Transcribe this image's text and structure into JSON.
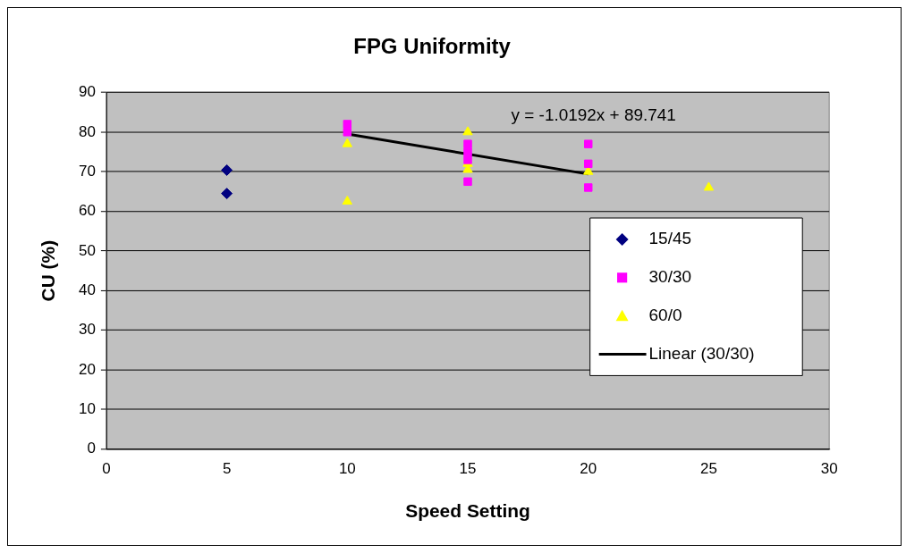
{
  "chart_data": {
    "type": "scatter",
    "title": "FPG Uniformity",
    "xlabel": "Speed Setting",
    "ylabel": "CU (%)",
    "xlim": [
      0,
      30
    ],
    "xticks": [
      0,
      5,
      10,
      15,
      20,
      25,
      30
    ],
    "ylim": [
      0,
      90
    ],
    "yticks": [
      0,
      10,
      20,
      30,
      40,
      50,
      60,
      70,
      80,
      90
    ],
    "grid": "y",
    "legend": "right",
    "annotations": [
      "y = -1.0192x + 89.741"
    ],
    "series": [
      {
        "name": "15/45",
        "color": "#000080",
        "marker": "diamond",
        "x": [
          5,
          5
        ],
        "values": [
          70.4,
          64.5
        ]
      },
      {
        "name": "30/30",
        "color": "#ff00ff",
        "marker": "square",
        "x": [
          10,
          10,
          15,
          15,
          15,
          15,
          20,
          20,
          20
        ],
        "values": [
          82,
          80,
          77,
          75,
          73,
          67.5,
          77,
          72,
          66
        ]
      },
      {
        "name": "60/0",
        "color": "#ffff00",
        "marker": "triangle",
        "x": [
          10,
          10,
          15,
          15,
          15,
          20,
          25
        ],
        "values": [
          77,
          62.5,
          80,
          72,
          70.5,
          70,
          66
        ]
      },
      {
        "name": "Linear (30/30)",
        "type": "line",
        "color": "#000000",
        "x": [
          10,
          20
        ],
        "values": [
          79.5,
          69.4
        ]
      }
    ]
  }
}
